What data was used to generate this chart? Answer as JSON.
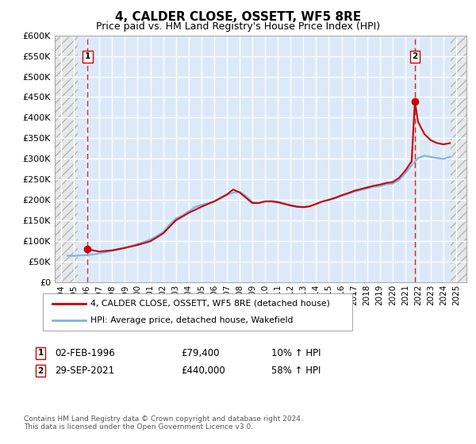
{
  "title": "4, CALDER CLOSE, OSSETT, WF5 8RE",
  "subtitle": "Price paid vs. HM Land Registry's House Price Index (HPI)",
  "ylim": [
    0,
    600000
  ],
  "yticks": [
    0,
    50000,
    100000,
    150000,
    200000,
    250000,
    300000,
    350000,
    400000,
    450000,
    500000,
    550000,
    600000
  ],
  "ytick_labels": [
    "£0",
    "£50K",
    "£100K",
    "£150K",
    "£200K",
    "£250K",
    "£300K",
    "£350K",
    "£400K",
    "£450K",
    "£500K",
    "£550K",
    "£600K"
  ],
  "background_color": "#dce9f8",
  "grid_color": "#ffffff",
  "sale1_date": 1996.08,
  "sale1_price": 79400,
  "sale1_label": "1",
  "sale2_date": 2021.75,
  "sale2_price": 440000,
  "sale2_label": "2",
  "sale_color": "#cc0000",
  "hpi_color": "#7fb3e8",
  "legend_sale_label": "4, CALDER CLOSE, OSSETT, WF5 8RE (detached house)",
  "legend_hpi_label": "HPI: Average price, detached house, Wakefield",
  "footer": "Contains HM Land Registry data © Crown copyright and database right 2024.\nThis data is licensed under the Open Government Licence v3.0.",
  "hpi_data": [
    [
      1994.5,
      64000
    ],
    [
      1995.0,
      63500
    ],
    [
      1995.5,
      64500
    ],
    [
      1996.0,
      65500
    ],
    [
      1996.5,
      67000
    ],
    [
      1997.0,
      69500
    ],
    [
      1997.5,
      72500
    ],
    [
      1998.0,
      75500
    ],
    [
      1998.5,
      78500
    ],
    [
      1999.0,
      82500
    ],
    [
      1999.5,
      87500
    ],
    [
      2000.0,
      92500
    ],
    [
      2000.5,
      97500
    ],
    [
      2001.0,
      103500
    ],
    [
      2001.5,
      111500
    ],
    [
      2002.0,
      121500
    ],
    [
      2002.5,
      139500
    ],
    [
      2003.0,
      154500
    ],
    [
      2003.5,
      161500
    ],
    [
      2004.0,
      171500
    ],
    [
      2004.5,
      182500
    ],
    [
      2005.0,
      187500
    ],
    [
      2005.5,
      191500
    ],
    [
      2006.0,
      195500
    ],
    [
      2006.5,
      202500
    ],
    [
      2007.0,
      211500
    ],
    [
      2007.5,
      217500
    ],
    [
      2008.0,
      219500
    ],
    [
      2008.5,
      209500
    ],
    [
      2009.0,
      194500
    ],
    [
      2009.5,
      192500
    ],
    [
      2010.0,
      196500
    ],
    [
      2010.5,
      197500
    ],
    [
      2011.0,
      195500
    ],
    [
      2011.5,
      191500
    ],
    [
      2012.0,
      187500
    ],
    [
      2012.5,
      184500
    ],
    [
      2013.0,
      182500
    ],
    [
      2013.5,
      184500
    ],
    [
      2014.0,
      189500
    ],
    [
      2014.5,
      195500
    ],
    [
      2015.0,
      199500
    ],
    [
      2015.5,
      203500
    ],
    [
      2016.0,
      209500
    ],
    [
      2016.5,
      214500
    ],
    [
      2017.0,
      219500
    ],
    [
      2017.5,
      223500
    ],
    [
      2018.0,
      227500
    ],
    [
      2018.5,
      231500
    ],
    [
      2019.0,
      233500
    ],
    [
      2019.5,
      237500
    ],
    [
      2020.0,
      239500
    ],
    [
      2020.5,
      247500
    ],
    [
      2021.0,
      264500
    ],
    [
      2021.5,
      284500
    ],
    [
      2022.0,
      301500
    ],
    [
      2022.5,
      307500
    ],
    [
      2023.0,
      304500
    ],
    [
      2023.5,
      301500
    ],
    [
      2024.0,
      299500
    ],
    [
      2024.5,
      304500
    ]
  ],
  "sale_line_data": [
    [
      1996.08,
      79400
    ],
    [
      1997.0,
      74000
    ],
    [
      1998.0,
      77000
    ],
    [
      1999.0,
      83000
    ],
    [
      2000.0,
      90000
    ],
    [
      2001.0,
      99000
    ],
    [
      2002.0,
      118000
    ],
    [
      2003.0,
      150000
    ],
    [
      2004.0,
      168000
    ],
    [
      2005.0,
      183000
    ],
    [
      2006.0,
      196000
    ],
    [
      2007.0,
      213000
    ],
    [
      2007.5,
      225000
    ],
    [
      2008.0,
      218000
    ],
    [
      2008.5,
      205000
    ],
    [
      2009.0,
      192000
    ],
    [
      2009.5,
      192000
    ],
    [
      2010.0,
      196000
    ],
    [
      2010.5,
      196000
    ],
    [
      2011.0,
      194000
    ],
    [
      2011.5,
      190000
    ],
    [
      2012.0,
      186000
    ],
    [
      2012.5,
      183000
    ],
    [
      2013.0,
      182000
    ],
    [
      2013.5,
      184000
    ],
    [
      2014.0,
      190000
    ],
    [
      2014.5,
      196000
    ],
    [
      2015.0,
      200000
    ],
    [
      2015.5,
      205000
    ],
    [
      2016.0,
      211000
    ],
    [
      2016.5,
      216000
    ],
    [
      2017.0,
      222000
    ],
    [
      2017.5,
      226000
    ],
    [
      2018.0,
      230000
    ],
    [
      2018.5,
      234000
    ],
    [
      2019.0,
      237000
    ],
    [
      2019.5,
      241000
    ],
    [
      2020.0,
      243000
    ],
    [
      2020.5,
      253000
    ],
    [
      2021.0,
      271000
    ],
    [
      2021.5,
      294000
    ],
    [
      2021.75,
      440000
    ],
    [
      2022.0,
      390000
    ],
    [
      2022.5,
      360000
    ],
    [
      2023.0,
      345000
    ],
    [
      2023.5,
      338000
    ],
    [
      2024.0,
      335000
    ],
    [
      2024.5,
      338000
    ]
  ],
  "xlim": [
    1993.5,
    2025.8
  ],
  "xtick_years": [
    1994,
    1995,
    1996,
    1997,
    1998,
    1999,
    2000,
    2001,
    2002,
    2003,
    2004,
    2005,
    2006,
    2007,
    2008,
    2009,
    2010,
    2011,
    2012,
    2013,
    2014,
    2015,
    2016,
    2017,
    2018,
    2019,
    2020,
    2021,
    2022,
    2023,
    2024,
    2025
  ],
  "hatch_left_end": 1995.3,
  "hatch_right_start": 2024.55,
  "row1_date": "02-FEB-1996",
  "row1_price": "£79,400",
  "row1_hpi": "10% ↑ HPI",
  "row2_date": "29-SEP-2021",
  "row2_price": "£440,000",
  "row2_hpi": "58% ↑ HPI"
}
